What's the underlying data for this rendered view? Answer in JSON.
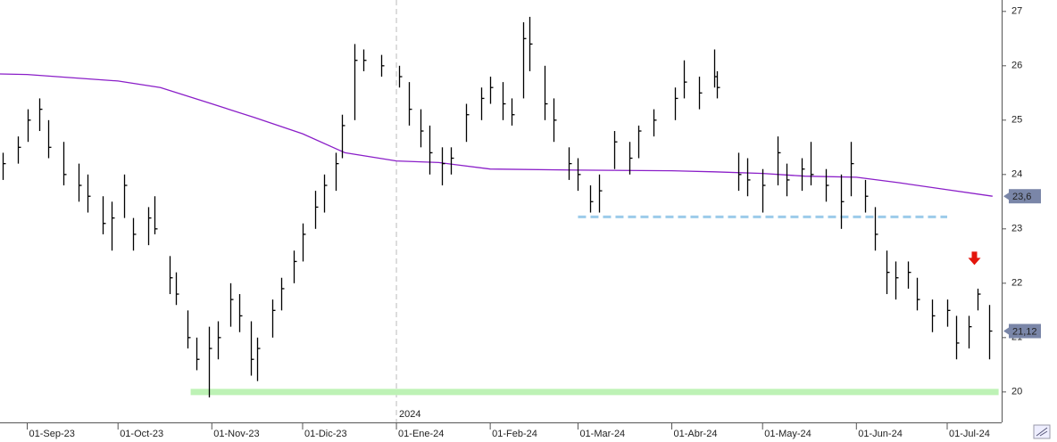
{
  "chart_data": {
    "type": "ohlc",
    "color": "#000000",
    "x": [
      "2023-08-24",
      "2023-08-29",
      "2023-09-01",
      "2023-09-05",
      "2023-09-08",
      "2023-09-13",
      "2023-09-18",
      "2023-09-21",
      "2023-09-26",
      "2023-09-29",
      "2023-10-03",
      "2023-10-06",
      "2023-10-11",
      "2023-10-13",
      "2023-10-18",
      "2023-10-20",
      "2023-10-24",
      "2023-10-27",
      "2023-10-31",
      "2023-11-03",
      "2023-11-07",
      "2023-11-10",
      "2023-11-14",
      "2023-11-16",
      "2023-11-21",
      "2023-11-24",
      "2023-11-28",
      "2023-12-01",
      "2023-12-05",
      "2023-12-08",
      "2023-12-12",
      "2023-12-14",
      "2023-12-18",
      "2023-12-21",
      "2023-12-27",
      "2024-01-02",
      "2024-01-05",
      "2024-01-09",
      "2024-01-12",
      "2024-01-16",
      "2024-01-19",
      "2024-01-24",
      "2024-01-29",
      "2024-02-01",
      "2024-02-05",
      "2024-02-08",
      "2024-02-12",
      "2024-02-14",
      "2024-02-19",
      "2024-02-22",
      "2024-02-27",
      "2024-03-01",
      "2024-03-05",
      "2024-03-08",
      "2024-03-13",
      "2024-03-18",
      "2024-03-21",
      "2024-03-26",
      "2024-04-02",
      "2024-04-05",
      "2024-04-10",
      "2024-04-15",
      "2024-04-16",
      "2024-04-23",
      "2024-04-26",
      "2024-05-01",
      "2024-05-06",
      "2024-05-09",
      "2024-05-14",
      "2024-05-17",
      "2024-05-22",
      "2024-05-27",
      "2024-05-30",
      "2024-06-04",
      "2024-06-07",
      "2024-06-11",
      "2024-06-14",
      "2024-06-18",
      "2024-06-21",
      "2024-06-26",
      "2024-07-01",
      "2024-07-04",
      "2024-07-08",
      "2024-07-11",
      "2024-07-15"
    ],
    "high": [
      24.4,
      24.7,
      25.2,
      25.4,
      25.0,
      24.6,
      24.2,
      24.0,
      23.6,
      23.5,
      24.0,
      23.2,
      23.4,
      23.6,
      22.5,
      22.2,
      21.5,
      21.0,
      21.2,
      21.3,
      22.0,
      21.8,
      21.3,
      21.0,
      21.7,
      22.1,
      22.6,
      23.1,
      23.7,
      24.0,
      24.4,
      25.1,
      26.4,
      26.3,
      26.2,
      26.0,
      25.7,
      25.2,
      24.9,
      24.5,
      24.5,
      25.3,
      25.6,
      25.8,
      25.7,
      25.4,
      26.8,
      26.9,
      26.0,
      25.4,
      24.5,
      24.3,
      23.8,
      24.0,
      24.8,
      24.6,
      24.9,
      25.2,
      25.6,
      26.1,
      25.8,
      26.3,
      25.9,
      24.4,
      24.3,
      24.1,
      24.7,
      24.2,
      24.3,
      24.6,
      24.1,
      24.0,
      24.6,
      23.9,
      23.4,
      22.6,
      22.4,
      22.4,
      22.1,
      21.7,
      21.7,
      21.4,
      21.4,
      21.9,
      21.6
    ],
    "low": [
      23.9,
      24.2,
      24.6,
      24.8,
      24.3,
      23.8,
      23.5,
      23.3,
      22.9,
      22.6,
      23.2,
      22.6,
      22.7,
      22.9,
      21.8,
      21.6,
      20.8,
      20.4,
      19.9,
      20.6,
      21.2,
      21.1,
      20.3,
      20.2,
      21.0,
      21.5,
      22.0,
      22.4,
      23.0,
      23.3,
      23.7,
      24.3,
      25.0,
      25.9,
      25.8,
      25.6,
      24.9,
      24.5,
      24.0,
      23.8,
      24.0,
      24.6,
      25.0,
      25.3,
      25.0,
      24.9,
      25.4,
      25.9,
      25.0,
      24.6,
      23.9,
      23.7,
      23.3,
      23.3,
      24.1,
      24.0,
      24.3,
      24.7,
      25.0,
      25.4,
      25.2,
      25.6,
      25.4,
      23.7,
      23.6,
      23.3,
      23.8,
      23.6,
      23.7,
      23.8,
      23.5,
      23.0,
      23.6,
      23.3,
      22.6,
      21.8,
      21.7,
      21.9,
      21.5,
      21.1,
      21.2,
      20.6,
      20.8,
      21.5,
      20.6
    ],
    "close": [
      24.2,
      24.5,
      25.0,
      25.2,
      24.5,
      24.0,
      23.8,
      23.6,
      23.1,
      23.2,
      23.8,
      22.9,
      23.2,
      23.0,
      22.1,
      21.8,
      21.0,
      20.6,
      20.8,
      21.0,
      21.7,
      21.4,
      20.6,
      20.8,
      21.5,
      21.9,
      22.4,
      22.9,
      23.4,
      23.8,
      24.2,
      24.9,
      26.1,
      26.1,
      26.0,
      25.8,
      25.2,
      24.8,
      24.4,
      24.2,
      24.3,
      25.1,
      25.4,
      25.6,
      25.3,
      25.1,
      26.5,
      26.4,
      25.3,
      25.0,
      24.2,
      24.0,
      23.5,
      23.7,
      24.6,
      24.3,
      24.8,
      25.0,
      25.4,
      25.7,
      25.5,
      25.8,
      25.6,
      24.0,
      23.9,
      23.8,
      24.4,
      23.9,
      24.1,
      24.0,
      23.8,
      23.5,
      24.2,
      23.6,
      22.9,
      22.2,
      22.1,
      22.2,
      21.7,
      21.4,
      21.5,
      20.9,
      21.2,
      21.8,
      21.12
    ],
    "xlim": [
      "2023-08-23",
      "2024-07-19"
    ],
    "ylim": [
      19.44,
      27.21
    ],
    "yticks": [
      20,
      21,
      22,
      23,
      24,
      25,
      26,
      27
    ],
    "xticks": [
      {
        "value": "2023-09-01",
        "label": "01-Sep-23"
      },
      {
        "value": "2023-10-01",
        "label": "01-Oct-23"
      },
      {
        "value": "2023-11-01",
        "label": "01-Nov-23"
      },
      {
        "value": "2023-12-01",
        "label": "01-Dic-23"
      },
      {
        "value": "2024-01-01",
        "label": "01-Ene-24"
      },
      {
        "value": "2024-02-01",
        "label": "01-Feb-24"
      },
      {
        "value": "2024-03-01",
        "label": "01-Mar-24"
      },
      {
        "value": "2024-04-01",
        "label": "01-Abr-24"
      },
      {
        "value": "2024-05-01",
        "label": "01-May-24"
      },
      {
        "value": "2024-06-01",
        "label": "01-Jun-24"
      },
      {
        "value": "2024-07-01",
        "label": "01-Jul-24"
      }
    ],
    "year_marker": {
      "value": "2024-01-01",
      "label": "2024"
    },
    "moving_average": {
      "color": "#8a1ec8",
      "x": [
        "2023-08-23",
        "2023-09-01",
        "2023-10-01",
        "2023-10-15",
        "2023-11-01",
        "2023-11-15",
        "2023-12-01",
        "2023-12-15",
        "2024-01-01",
        "2024-01-15",
        "2024-02-01",
        "2024-03-01",
        "2024-04-01",
        "2024-04-15",
        "2024-05-01",
        "2024-05-15",
        "2024-06-01",
        "2024-06-15",
        "2024-07-01",
        "2024-07-16"
      ],
      "values": [
        25.85,
        25.84,
        25.72,
        25.6,
        25.3,
        25.05,
        24.75,
        24.4,
        24.25,
        24.22,
        24.1,
        24.08,
        24.07,
        24.05,
        24.02,
        23.97,
        23.95,
        23.85,
        23.72,
        23.6
      ]
    },
    "levels": [
      {
        "value": 23.22,
        "from": "2024-03-01",
        "to": "2024-07-01",
        "color": "#9ccbea",
        "dashed": true
      },
      {
        "value": 20.0,
        "from": "2023-10-25",
        "to": "2024-07-18",
        "color": "#bdf2b5",
        "dashed": false
      }
    ],
    "arrow": {
      "x": "2024-07-10",
      "value": 22.45,
      "color": "#e3150c"
    },
    "last_labels": [
      {
        "value": 23.6,
        "label": "23,6"
      },
      {
        "value": 21.12,
        "label": "21,12"
      }
    ],
    "label_color": "#7a86a8"
  }
}
